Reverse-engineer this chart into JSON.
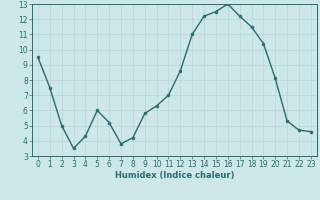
{
  "x": [
    0,
    1,
    2,
    3,
    4,
    5,
    6,
    7,
    8,
    9,
    10,
    11,
    12,
    13,
    14,
    15,
    16,
    17,
    18,
    19,
    20,
    21,
    22,
    23
  ],
  "y": [
    9.5,
    7.5,
    5.0,
    3.5,
    4.3,
    6.0,
    5.2,
    3.8,
    4.2,
    5.8,
    6.3,
    7.0,
    8.6,
    11.0,
    12.2,
    12.5,
    13.0,
    12.2,
    11.5,
    10.4,
    8.1,
    5.3,
    4.7,
    4.6
  ],
  "line_color": "#2d6b6b",
  "marker": "o",
  "markersize": 2.0,
  "linewidth": 1.0,
  "bg_color": "#cce8e8",
  "grid_color": "#b8d4d4",
  "xlabel": "Humidex (Indice chaleur)",
  "xlim": [
    -0.5,
    23.5
  ],
  "ylim": [
    3,
    13
  ],
  "xticks": [
    0,
    1,
    2,
    3,
    4,
    5,
    6,
    7,
    8,
    9,
    10,
    11,
    12,
    13,
    14,
    15,
    16,
    17,
    18,
    19,
    20,
    21,
    22,
    23
  ],
  "yticks": [
    3,
    4,
    5,
    6,
    7,
    8,
    9,
    10,
    11,
    12,
    13
  ],
  "xlabel_fontsize": 6.0,
  "tick_fontsize": 5.5,
  "tick_color": "#2d6b6b",
  "axes_color": "#2d6b6b",
  "spine_color": "#2d6b6b"
}
